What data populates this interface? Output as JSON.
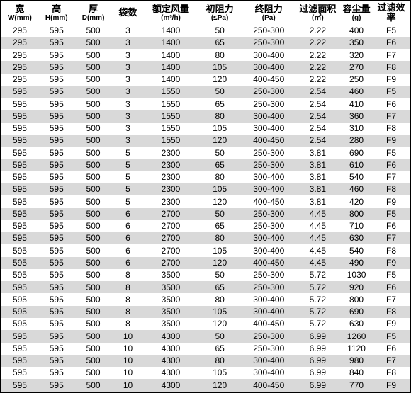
{
  "table": {
    "type": "table",
    "background_color": "#ffffff",
    "alt_row_color": "#d9d9d9",
    "border_color": "#000000",
    "text_color": "#000000",
    "header_fontsize": 11,
    "cell_fontsize": 12,
    "columns": [
      {
        "cn": "宽",
        "unit": "W(mm)",
        "width_pct": 9
      },
      {
        "cn": "高",
        "unit": "H(mm)",
        "width_pct": 9
      },
      {
        "cn": "厚",
        "unit": "D(mm)",
        "width_pct": 9
      },
      {
        "cn": "袋数",
        "unit": "",
        "width_pct": 8
      },
      {
        "cn": "额定风量",
        "unit": "(m³/h)",
        "width_pct": 13
      },
      {
        "cn": "初阻力",
        "unit": "(≤Pa)",
        "width_pct": 11
      },
      {
        "cn": "终阻力",
        "unit": "(Pa)",
        "width_pct": 13
      },
      {
        "cn": "过滤面积",
        "unit": "(㎡)",
        "width_pct": 11
      },
      {
        "cn": "容尘量",
        "unit": "(g)",
        "width_pct": 8
      },
      {
        "cn": "过滤效率",
        "unit": "",
        "width_pct": 9
      }
    ],
    "rows": [
      [
        "295",
        "595",
        "500",
        "3",
        "1400",
        "50",
        "250-300",
        "2.22",
        "400",
        "F5"
      ],
      [
        "295",
        "595",
        "500",
        "3",
        "1400",
        "65",
        "250-300",
        "2.22",
        "350",
        "F6"
      ],
      [
        "295",
        "595",
        "500",
        "3",
        "1400",
        "80",
        "300-400",
        "2.22",
        "320",
        "F7"
      ],
      [
        "295",
        "595",
        "500",
        "3",
        "1400",
        "105",
        "300-400",
        "2.22",
        "270",
        "F8"
      ],
      [
        "295",
        "595",
        "500",
        "3",
        "1400",
        "120",
        "400-450",
        "2.22",
        "250",
        "F9"
      ],
      [
        "595",
        "595",
        "500",
        "3",
        "1550",
        "50",
        "250-300",
        "2.54",
        "460",
        "F5"
      ],
      [
        "595",
        "595",
        "500",
        "3",
        "1550",
        "65",
        "250-300",
        "2.54",
        "410",
        "F6"
      ],
      [
        "595",
        "595",
        "500",
        "3",
        "1550",
        "80",
        "300-400",
        "2.54",
        "360",
        "F7"
      ],
      [
        "595",
        "595",
        "500",
        "3",
        "1550",
        "105",
        "300-400",
        "2.54",
        "310",
        "F8"
      ],
      [
        "595",
        "595",
        "500",
        "3",
        "1550",
        "120",
        "400-450",
        "2.54",
        "280",
        "F9"
      ],
      [
        "595",
        "595",
        "500",
        "5",
        "2300",
        "50",
        "250-300",
        "3.81",
        "690",
        "F5"
      ],
      [
        "595",
        "595",
        "500",
        "5",
        "2300",
        "65",
        "250-300",
        "3.81",
        "610",
        "F6"
      ],
      [
        "595",
        "595",
        "500",
        "5",
        "2300",
        "80",
        "300-400",
        "3.81",
        "540",
        "F7"
      ],
      [
        "595",
        "595",
        "500",
        "5",
        "2300",
        "105",
        "300-400",
        "3.81",
        "460",
        "F8"
      ],
      [
        "595",
        "595",
        "500",
        "5",
        "2300",
        "120",
        "400-450",
        "3.81",
        "420",
        "F9"
      ],
      [
        "595",
        "595",
        "500",
        "6",
        "2700",
        "50",
        "250-300",
        "4.45",
        "800",
        "F5"
      ],
      [
        "595",
        "595",
        "500",
        "6",
        "2700",
        "65",
        "250-300",
        "4.45",
        "710",
        "F6"
      ],
      [
        "595",
        "595",
        "500",
        "6",
        "2700",
        "80",
        "300-400",
        "4.45",
        "630",
        "F7"
      ],
      [
        "595",
        "595",
        "500",
        "6",
        "2700",
        "105",
        "300-400",
        "4.45",
        "540",
        "F8"
      ],
      [
        "595",
        "595",
        "500",
        "6",
        "2700",
        "120",
        "400-450",
        "4.45",
        "490",
        "F9"
      ],
      [
        "595",
        "595",
        "500",
        "8",
        "3500",
        "50",
        "250-300",
        "5.72",
        "1030",
        "F5"
      ],
      [
        "595",
        "595",
        "500",
        "8",
        "3500",
        "65",
        "250-300",
        "5.72",
        "920",
        "F6"
      ],
      [
        "595",
        "595",
        "500",
        "8",
        "3500",
        "80",
        "300-400",
        "5.72",
        "800",
        "F7"
      ],
      [
        "595",
        "595",
        "500",
        "8",
        "3500",
        "105",
        "300-400",
        "5.72",
        "690",
        "F8"
      ],
      [
        "595",
        "595",
        "500",
        "8",
        "3500",
        "120",
        "400-450",
        "5.72",
        "630",
        "F9"
      ],
      [
        "595",
        "595",
        "500",
        "10",
        "4300",
        "50",
        "250-300",
        "6.99",
        "1260",
        "F5"
      ],
      [
        "595",
        "595",
        "500",
        "10",
        "4300",
        "65",
        "250-300",
        "6.99",
        "1120",
        "F6"
      ],
      [
        "595",
        "595",
        "500",
        "10",
        "4300",
        "80",
        "300-400",
        "6.99",
        "980",
        "F7"
      ],
      [
        "595",
        "595",
        "500",
        "10",
        "4300",
        "105",
        "300-400",
        "6.99",
        "840",
        "F8"
      ],
      [
        "595",
        "595",
        "500",
        "10",
        "4300",
        "120",
        "400-450",
        "6.99",
        "770",
        "F9"
      ]
    ]
  }
}
